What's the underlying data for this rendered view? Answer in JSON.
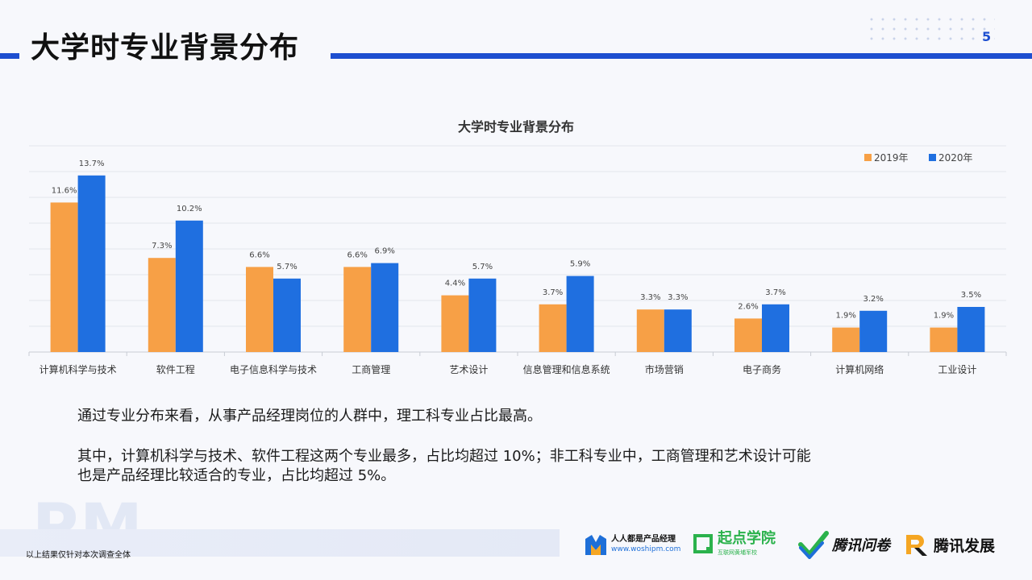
{
  "header": {
    "title": "大学时专业背景分布",
    "page_number": "5"
  },
  "chart_data": {
    "type": "bar",
    "title": "大学时专业背景分布",
    "categories": [
      "计算机科学与技术",
      "软件工程",
      "电子信息科学与技术",
      "工商管理",
      "艺术设计",
      "信息管理和信息系统",
      "市场营销",
      "电子商务",
      "计算机网络",
      "工业设计"
    ],
    "series": [
      {
        "name": "2019年",
        "color": "#f7a046",
        "values": [
          11.6,
          7.3,
          6.6,
          6.6,
          4.4,
          3.7,
          3.3,
          2.6,
          1.9,
          1.9
        ]
      },
      {
        "name": "2020年",
        "color": "#1f6fe0",
        "values": [
          13.7,
          10.2,
          5.7,
          6.9,
          5.7,
          5.9,
          3.3,
          3.7,
          3.2,
          3.5
        ]
      }
    ],
    "value_suffix": "%",
    "ylim": [
      0,
      16
    ],
    "grid": true,
    "legend": "top-right",
    "xlabel": "",
    "ylabel": ""
  },
  "summary": {
    "paragraph1": "通过专业分布来看，从事产品经理岗位的人群中，理工科专业占比最高。",
    "paragraph2_line1": "其中，计算机科学与技术、软件工程这两个专业最多，占比均超过 10%；非工科专业中，工商管理和艺术设计可能",
    "paragraph2_line2": "也是产品经理比较适合的专业，占比均超过 5%。"
  },
  "footer": {
    "watermark": "PM",
    "note": "以上结果仅针对本次调查全体",
    "logos": {
      "woshipm_name": "人人都是产品经理",
      "woshipm_url": "www.woshipm.com",
      "qidian_name": "起点学院",
      "qidian_sub": "互联网黄埔军校",
      "wenjuan_name": "腾讯问卷",
      "fazhan_name": "腾讯发展"
    },
    "colors": {
      "accent": "#1e4fd0",
      "green": "#2bb24c"
    }
  }
}
